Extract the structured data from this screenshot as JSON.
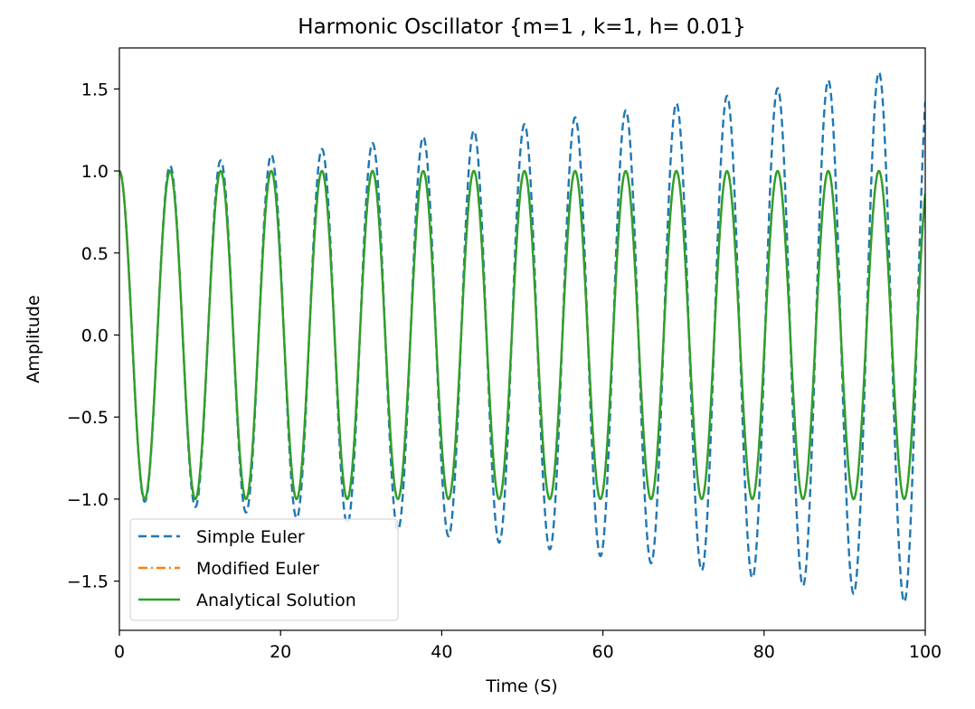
{
  "chart_data": {
    "type": "line",
    "title": "Harmonic Oscillator {m=1 , k=1, h= 0.01}",
    "xlabel": "Time (S)",
    "ylabel": "Amplitude",
    "xlim": [
      0,
      100
    ],
    "ylim": [
      -1.8,
      1.75
    ],
    "xticks": [
      0,
      20,
      40,
      60,
      80,
      100
    ],
    "xtick_labels": [
      "0",
      "20",
      "40",
      "60",
      "80",
      "100"
    ],
    "yticks": [
      -1.5,
      -1.0,
      -0.5,
      0.0,
      0.5,
      1.0,
      1.5
    ],
    "ytick_labels": [
      "−1.5",
      "−1.0",
      "−0.5",
      "0.0",
      "0.5",
      "1.0",
      "1.5"
    ],
    "grid": false,
    "legend_position": "lower-left",
    "series": [
      {
        "name": "Simple Euler",
        "style": "dashed",
        "color": "#1f77b4",
        "model": "x(t) = exp(h*t/2) * cos(t)",
        "h": 0.01,
        "omega": 1.0
      },
      {
        "name": "Modified Euler",
        "style": "dashdot",
        "color": "#ff7f0e",
        "model": "x(t) = cos(t)",
        "omega": 1.0
      },
      {
        "name": "Analytical Solution",
        "style": "solid",
        "color": "#2ca02c",
        "model": "x(t) = cos(t)",
        "omega": 1.0
      }
    ]
  }
}
